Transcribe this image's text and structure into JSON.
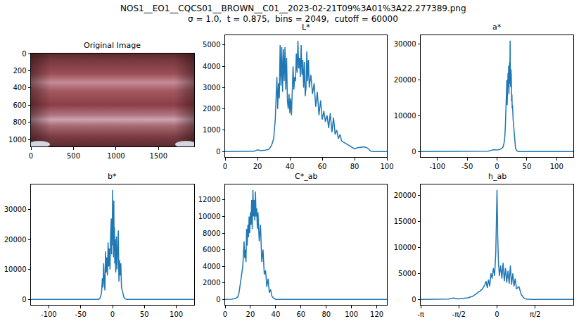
{
  "title": "NOS1__EO1__CQCS01__BROWN__C01__2023-02-21T09%3A01%3A22.277389.png",
  "subtitle": "σ = 1.0,  t = 0.875,  bins = 2049,  cutoff = 60000",
  "chart_data": [
    {
      "type": "image",
      "title": "Original Image",
      "grid": false,
      "xlim": [
        -0.5,
        1919.5
      ],
      "ylim": [
        1079.5,
        -0.5
      ],
      "xticks": [
        0,
        500,
        1000,
        1500
      ],
      "yticks": [
        0,
        200,
        400,
        600,
        800,
        1000
      ]
    },
    {
      "type": "line",
      "title": "L*",
      "color": "#1f77b4",
      "grid": false,
      "xlim": [
        0,
        100
      ],
      "ylim": [
        -260,
        5460
      ],
      "xticks": [
        0,
        20,
        40,
        60,
        80,
        100
      ],
      "yticks": [
        0,
        1000,
        2000,
        3000,
        4000,
        5000
      ],
      "x": [
        0,
        10,
        18,
        20,
        22,
        25,
        27,
        28,
        29,
        30,
        31,
        32,
        32.5,
        33,
        33.5,
        34,
        34.5,
        35,
        35.5,
        36,
        36.5,
        37,
        37.5,
        38,
        38.5,
        39,
        39.5,
        40,
        40.5,
        41,
        41.5,
        42,
        42.5,
        43,
        43.5,
        44,
        44.5,
        45,
        45.5,
        46,
        46.5,
        47,
        47.5,
        48,
        48.5,
        49,
        49.5,
        50,
        50.5,
        51,
        51.5,
        52,
        53,
        54,
        55,
        56,
        57,
        58,
        59,
        60,
        61,
        62,
        63,
        64,
        65,
        66,
        67,
        68,
        69,
        70,
        71,
        72,
        73,
        74,
        75,
        76,
        78,
        80,
        82,
        84,
        86,
        88,
        89,
        90,
        92,
        100
      ],
      "values": [
        0,
        0,
        10,
        80,
        40,
        60,
        100,
        200,
        350,
        600,
        1500,
        3500,
        2000,
        3200,
        2500,
        5000,
        3100,
        4900,
        2800,
        4800,
        3300,
        4900,
        2900,
        4400,
        2400,
        2000,
        2700,
        1800,
        2500,
        1700,
        3000,
        4000,
        2900,
        3500,
        3300,
        4600,
        3700,
        5200,
        3900,
        4400,
        3500,
        5000,
        3600,
        4300,
        3000,
        4200,
        2600,
        3000,
        4700,
        3300,
        4300,
        3000,
        3600,
        2700,
        3200,
        2100,
        2800,
        1700,
        2400,
        1500,
        1900,
        1400,
        1700,
        1100,
        1800,
        900,
        1600,
        800,
        1000,
        600,
        800,
        500,
        450,
        400,
        350,
        300,
        200,
        120,
        180,
        200,
        220,
        160,
        90,
        20,
        0,
        0
      ]
    },
    {
      "type": "line",
      "title": "a*",
      "color": "#1f77b4",
      "grid": false,
      "xlim": [
        -128,
        128
      ],
      "ylim": [
        -1550,
        32550
      ],
      "xticks": [
        -100,
        -50,
        0,
        50,
        100
      ],
      "yticks": [
        0,
        10000,
        20000,
        30000
      ],
      "x": [
        -128,
        -20,
        -15,
        -10,
        -5,
        0,
        5,
        8,
        10,
        12,
        13,
        14,
        15,
        16,
        16.5,
        17,
        17.5,
        18,
        18.5,
        19,
        19.5,
        20,
        20.5,
        21,
        21.5,
        22,
        22.5,
        23,
        23.5,
        24,
        24.5,
        25,
        25.5,
        26,
        27,
        28,
        29,
        30,
        31,
        32,
        34,
        36,
        128
      ],
      "values": [
        0,
        0,
        100,
        300,
        500,
        400,
        600,
        900,
        1200,
        2500,
        4000,
        7000,
        11000,
        15000,
        20000,
        13000,
        19000,
        16000,
        22000,
        18000,
        24000,
        16000,
        21000,
        25000,
        19000,
        31000,
        20000,
        18000,
        23000,
        21000,
        14000,
        16000,
        12000,
        13000,
        9000,
        6500,
        4000,
        2200,
        1000,
        500,
        100,
        0,
        0
      ]
    },
    {
      "type": "line",
      "title": "b*",
      "color": "#1f77b4",
      "grid": false,
      "xlim": [
        -128,
        128
      ],
      "ylim": [
        -1825,
        38325
      ],
      "xticks": [
        -100,
        -50,
        0,
        50,
        100
      ],
      "yticks": [
        0,
        10000,
        20000,
        30000
      ],
      "x": [
        -128,
        -22,
        -20,
        -18,
        -17,
        -16,
        -15,
        -14,
        -13,
        -12,
        -11,
        -10,
        -9,
        -8,
        -7,
        -6,
        -5,
        -4,
        -3,
        -2,
        -1.5,
        -1,
        -0.5,
        0,
        0.5,
        1,
        1.5,
        2,
        2.5,
        3,
        3.5,
        4,
        5,
        6,
        7,
        8,
        9,
        10,
        11,
        12,
        13,
        14,
        15,
        16,
        18,
        20,
        22,
        128
      ],
      "values": [
        0,
        0,
        300,
        1500,
        3000,
        7000,
        4000,
        12000,
        6000,
        3000,
        16000,
        9000,
        14000,
        8000,
        19000,
        11000,
        17000,
        10000,
        22000,
        27000,
        15000,
        25000,
        18000,
        36500,
        20000,
        30000,
        14000,
        33000,
        16000,
        24000,
        12000,
        20000,
        9000,
        21000,
        10000,
        16000,
        23000,
        6000,
        13000,
        8000,
        12000,
        4000,
        3000,
        1800,
        600,
        200,
        0,
        0
      ]
    },
    {
      "type": "line",
      "title": "C*_ab",
      "color": "#1f77b4",
      "grid": false,
      "xlim": [
        0,
        128
      ],
      "ylim": [
        -660,
        13860
      ],
      "xticks": [
        0,
        20,
        40,
        60,
        80,
        100,
        120
      ],
      "yticks": [
        0,
        2000,
        4000,
        6000,
        8000,
        10000,
        12000
      ],
      "x": [
        0,
        5,
        8,
        10,
        11,
        12,
        13,
        14,
        15,
        15.5,
        16,
        16.5,
        17,
        17.5,
        18,
        18.5,
        19,
        19.5,
        20,
        20.5,
        21,
        21.5,
        22,
        22.5,
        23,
        23.5,
        24,
        24.5,
        25,
        25.5,
        26,
        27,
        28,
        29,
        30,
        31,
        32,
        33,
        34,
        35,
        36,
        37,
        38,
        40,
        128
      ],
      "values": [
        0,
        20,
        100,
        300,
        800,
        2000,
        3000,
        4000,
        7000,
        5000,
        6000,
        4500,
        8500,
        6500,
        9000,
        7500,
        10000,
        8000,
        10500,
        9000,
        12000,
        8500,
        13200,
        10000,
        12000,
        9500,
        13000,
        10000,
        11000,
        8500,
        10500,
        7000,
        9000,
        4500,
        6000,
        3000,
        3500,
        1500,
        2500,
        800,
        1200,
        400,
        200,
        0,
        0
      ]
    },
    {
      "type": "line",
      "title": "h_ab",
      "color": "#1f77b4",
      "grid": false,
      "xlim": [
        -3.141592653589793,
        3.141592653589793
      ],
      "ylim": [
        -1050,
        22050
      ],
      "xticks": [
        {
          "value": -3.141592653589793,
          "label": "-π"
        },
        {
          "value": -1.5707963267948966,
          "label": "-π/2"
        },
        0,
        {
          "value": 1.5707963267948966,
          "label": "π/2"
        }
      ],
      "yticks": [
        0,
        5000,
        10000,
        15000,
        20000
      ],
      "x": [
        -3.14,
        -2.2,
        -2.0,
        -1.8,
        -1.6,
        -1.4,
        -1.2,
        -1.0,
        -0.9,
        -0.8,
        -0.7,
        -0.6,
        -0.5,
        -0.45,
        -0.4,
        -0.35,
        -0.3,
        -0.25,
        -0.2,
        -0.15,
        -0.1,
        -0.05,
        0,
        0.03,
        0.06,
        0.1,
        0.15,
        0.2,
        0.25,
        0.3,
        0.35,
        0.4,
        0.45,
        0.5,
        0.55,
        0.6,
        0.65,
        0.7,
        0.75,
        0.8,
        0.9,
        1.0,
        1.1,
        1.2,
        1.4,
        3.14
      ],
      "values": [
        0,
        20,
        80,
        250,
        100,
        200,
        300,
        600,
        900,
        1300,
        1600,
        2000,
        2800,
        3500,
        2200,
        3800,
        2500,
        5000,
        4000,
        6000,
        4500,
        9000,
        21000,
        12000,
        7000,
        4500,
        6500,
        4000,
        7000,
        3500,
        6000,
        3200,
        5500,
        3000,
        6500,
        2800,
        5000,
        2500,
        4000,
        2000,
        2500,
        900,
        300,
        50,
        0,
        0
      ]
    }
  ]
}
